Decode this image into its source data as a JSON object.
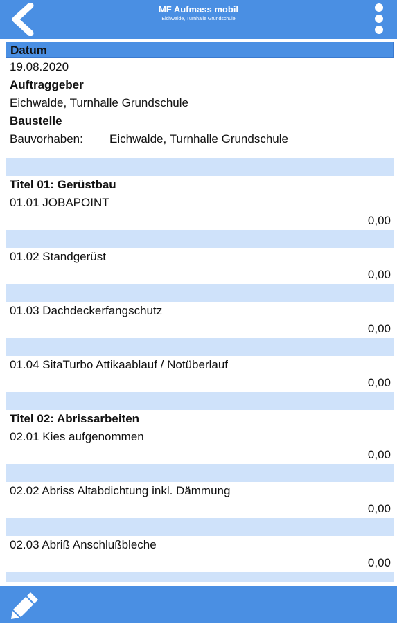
{
  "header": {
    "title": "MF Aufmass mobil",
    "subtitle": "Eichwalde, Turnhalle Grundschule"
  },
  "info": {
    "datum_label": "Datum",
    "datum_value": "19.08.2020",
    "auftraggeber_label": "Auftraggeber",
    "auftraggeber_value": "Eichwalde, Turnhalle Grundschule",
    "baustelle_label": "Baustelle",
    "bauvorhaben_key": "Bauvorhaben:",
    "bauvorhaben_value": "Eichwalde, Turnhalle Grundschule"
  },
  "sections": [
    {
      "title": "Titel 01: Gerüstbau",
      "items": [
        {
          "label": "01.01 JOBAPOINT",
          "value": "0,00"
        },
        {
          "label": "01.02 Standgerüst",
          "value": "0,00"
        },
        {
          "label": "01.03 Dachdeckerfangschutz",
          "value": "0,00"
        },
        {
          "label": "01.04 SitaTurbo Attikaablauf / Notüberlauf",
          "value": "0,00"
        }
      ]
    },
    {
      "title": "Titel 02: Abrissarbeiten",
      "items": [
        {
          "label": "02.01 Kies aufgenommen",
          "value": "0,00"
        },
        {
          "label": "02.02 Abriss Altabdichtung inkl. Dämmung",
          "value": "0,00"
        },
        {
          "label": "02.03 Abriß Anschlußbleche",
          "value": "0,00"
        }
      ]
    }
  ],
  "icons": {
    "back": "back-arrow-icon",
    "menu": "more-vertical-icon",
    "edit": "pencil-icon"
  },
  "colors": {
    "bar": "#4a8fe3",
    "separator": "#cfe2fa"
  }
}
